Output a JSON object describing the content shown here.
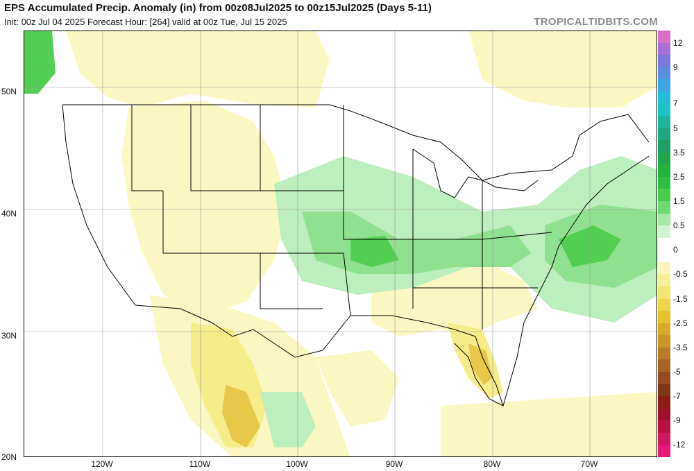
{
  "header": {
    "title": "EPS Accumulated Precip. Anomaly (in) from 00z08Jul2025 to 00z15Jul2025 (Days 5-11)",
    "subtitle": "Init: 00z Jul 04 2025   Forecast Hour: [264]   valid at 00z Tue, Jul 15 2025",
    "brand": "TROPICALTIDBITS.COM"
  },
  "map": {
    "lat_labels": [
      "50N",
      "40N",
      "30N",
      "20N"
    ],
    "lon_labels": [
      "120W",
      "110W",
      "100W",
      "90W",
      "80W",
      "70W"
    ],
    "colors": {
      "wet_light": "#bdeebd",
      "wet_mid": "#8fe08f",
      "wet_strong": "#52cf52",
      "wet_heavy": "#2dbf44",
      "dry_light": "#fbf7c2",
      "dry_mid": "#f6ec8a",
      "dry_strong": "#e8c84a",
      "dry_heavy": "#c9913a",
      "border": "#000000",
      "coast": "#222222"
    }
  },
  "colorbar": {
    "levels": [
      {
        "label": "12",
        "color": "#d96fc9"
      },
      {
        "label": "",
        "color": "#a86fd6"
      },
      {
        "label": "9",
        "color": "#7a78db"
      },
      {
        "label": "",
        "color": "#5a8fde"
      },
      {
        "label": "",
        "color": "#3fa6e6"
      },
      {
        "label": "7",
        "color": "#25bdd9"
      },
      {
        "label": "",
        "color": "#1fc2c2"
      },
      {
        "label": "5",
        "color": "#1eb39e"
      },
      {
        "label": "",
        "color": "#1ea882"
      },
      {
        "label": "3.5",
        "color": "#1ea065"
      },
      {
        "label": "",
        "color": "#1fa84b"
      },
      {
        "label": "2.5",
        "color": "#22b33d"
      },
      {
        "label": "",
        "color": "#2dbf44"
      },
      {
        "label": "1.5",
        "color": "#48cc4f"
      },
      {
        "label": "",
        "color": "#6fd870"
      },
      {
        "label": "0.5",
        "color": "#a6e8a6"
      },
      {
        "label": "",
        "color": "#d3f4d3"
      },
      {
        "label": "0",
        "color": "#ffffff"
      },
      {
        "label": "",
        "color": "#ffffff"
      },
      {
        "label": "-0.5",
        "color": "#fbf6c0"
      },
      {
        "label": "",
        "color": "#f8ef9a"
      },
      {
        "label": "-1.5",
        "color": "#f4e470"
      },
      {
        "label": "",
        "color": "#efd54a"
      },
      {
        "label": "-2.5",
        "color": "#e6c32e"
      },
      {
        "label": "",
        "color": "#d8aa2a"
      },
      {
        "label": "-3.5",
        "color": "#c99428"
      },
      {
        "label": "",
        "color": "#b97d28"
      },
      {
        "label": "-5",
        "color": "#a66424"
      },
      {
        "label": "",
        "color": "#934d20"
      },
      {
        "label": "-7",
        "color": "#7e3619"
      },
      {
        "label": "",
        "color": "#8a1e12"
      },
      {
        "label": "-9",
        "color": "#a0102a"
      },
      {
        "label": "",
        "color": "#b81040"
      },
      {
        "label": "-12",
        "color": "#d01660"
      },
      {
        "label": "",
        "color": "#e8157a"
      }
    ]
  }
}
